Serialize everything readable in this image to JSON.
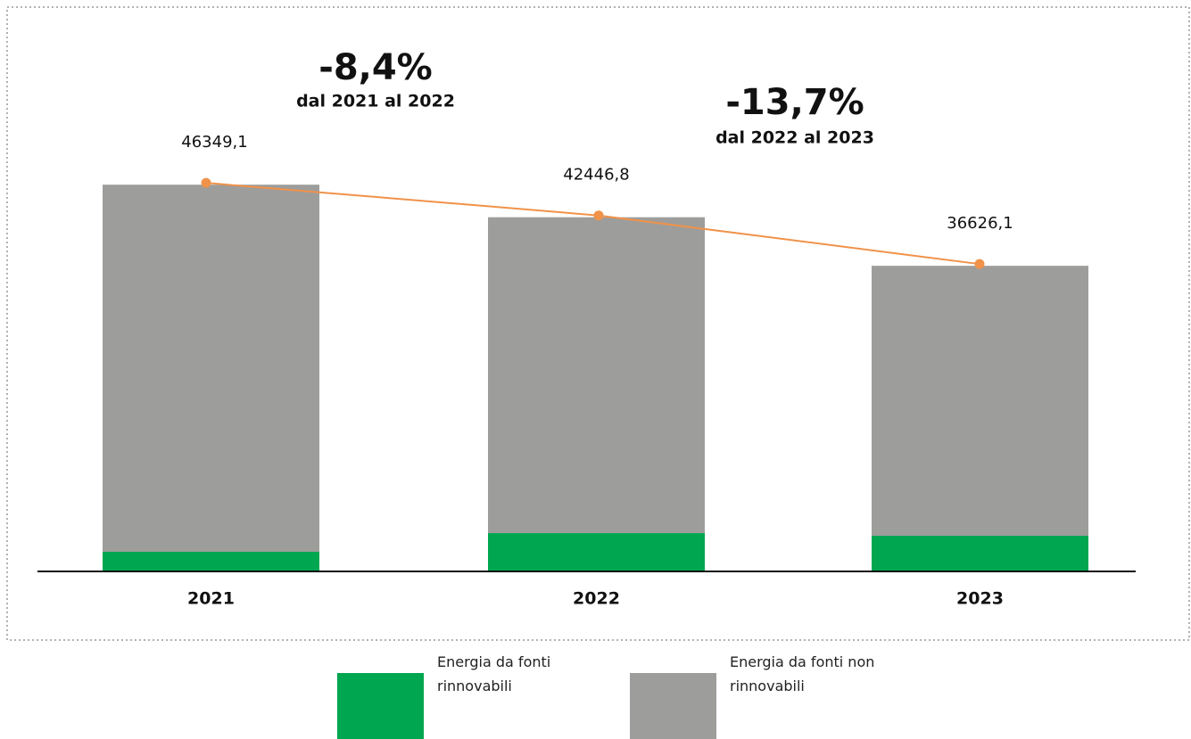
{
  "chart_data": {
    "type": "bar",
    "stacked": true,
    "categories": [
      "2021",
      "2022",
      "2023"
    ],
    "series": [
      {
        "name": "Energia da fonti rinnovabili",
        "color": "#00a650",
        "values": [
          2350,
          4590,
          4270
        ]
      },
      {
        "name": "Energia da fonti non rinnovabili",
        "color": "#9d9d9b",
        "values": [
          43999.1,
          37856.8,
          32356.1
        ]
      }
    ],
    "line": {
      "color": "#f0924a",
      "values": [
        46349.1,
        42446.8,
        36626.1
      ],
      "value_labels": [
        "46349,1",
        "42446,8",
        "36626,1"
      ]
    },
    "annotations": [
      {
        "text": "-8,4%",
        "subtext": "dal 2021 al 2022"
      },
      {
        "text": "-13,7%",
        "subtext": "dal 2022 al 2023"
      }
    ],
    "ylim": [
      0,
      50000
    ]
  }
}
